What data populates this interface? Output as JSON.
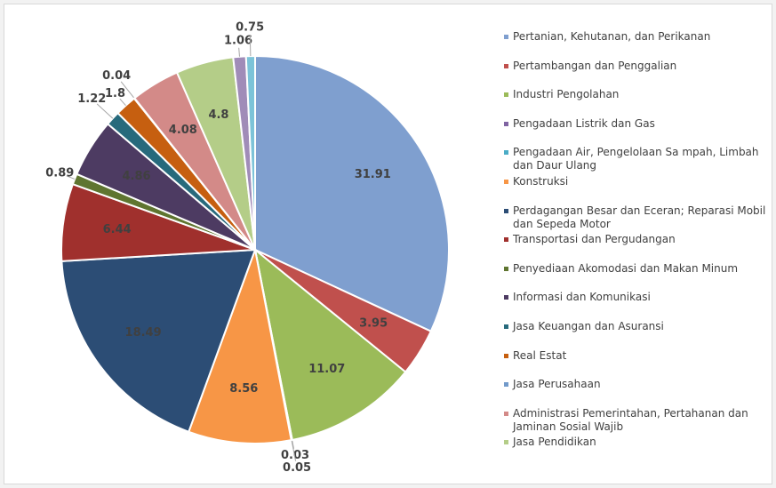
{
  "chart_data": {
    "type": "pie",
    "categories": [
      "Pertanian, Kehutanan, dan Perikanan",
      "Pertambangan dan Penggalian",
      "Industri Pengolahan",
      "Pengadaan Listrik dan Gas",
      "Pengadaan Air, Pengelolaan Sa mpah, Limbah dan Daur Ulang",
      "Konstruksi",
      "Perdagangan Besar dan Eceran; Reparasi Mobil dan Sepeda Motor",
      "Transportasi dan Pergudangan",
      "Penyediaan Akomodasi dan Makan Minum",
      "Informasi dan Komunikasi",
      "Jasa Keuangan dan Asuransi",
      "Real Estat",
      "Jasa Perusahaan",
      "Administrasi Pemerintahan, Pertahanan dan Jaminan Sosial Wajib",
      "Jasa Pendidikan",
      null,
      null
    ],
    "values": [
      31.91,
      3.95,
      11.07,
      0.03,
      0.05,
      8.56,
      18.49,
      6.44,
      0.89,
      4.86,
      1.22,
      1.8,
      0.04,
      4.08,
      4.8,
      1.06,
      0.75
    ],
    "colors": [
      "#7f9fcf",
      "#c0504d",
      "#9bbb59",
      "#8064a2",
      "#4bacc6",
      "#f79646",
      "#2c4d75",
      "#a0302d",
      "#5f7530",
      "#4d3b62",
      "#276a7c",
      "#c65f10",
      "#729aca",
      "#d38a88",
      "#b4cd88",
      "#a08cb8",
      "#7cc3d8"
    ]
  }
}
